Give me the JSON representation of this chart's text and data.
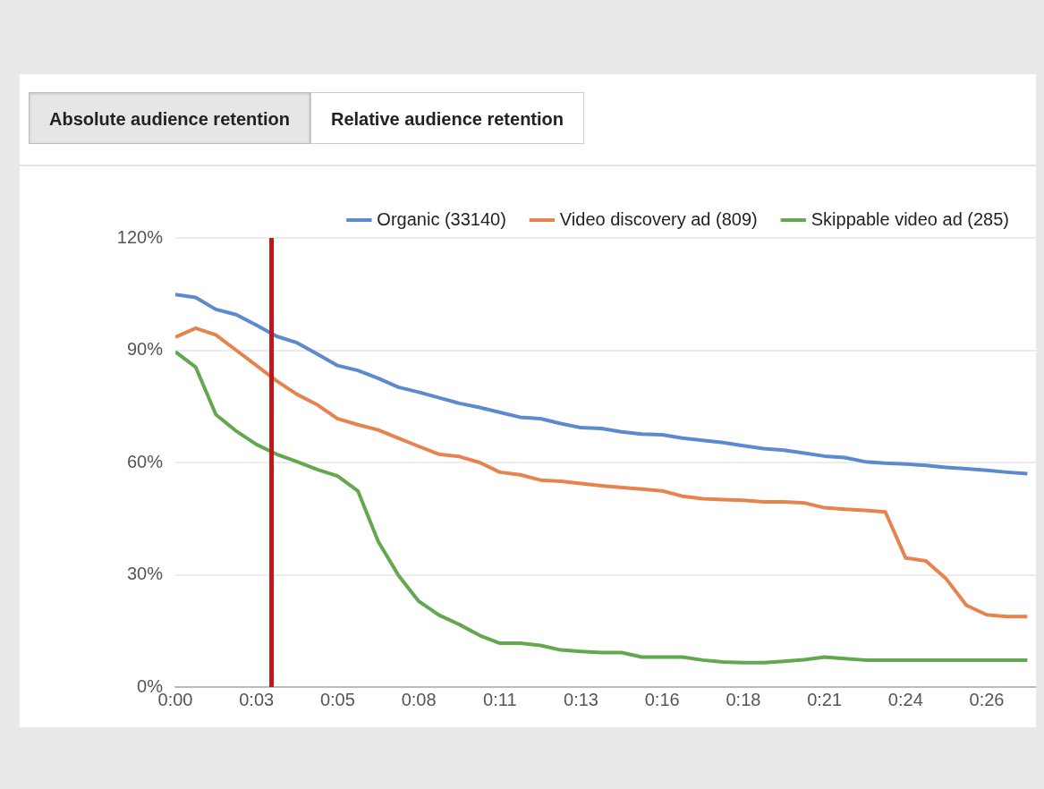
{
  "chart_data": {
    "type": "line",
    "annotations": [
      "Absolute audience retention",
      "Relative audience retention"
    ],
    "x": [
      0,
      0.66,
      1.32,
      1.98,
      2.64,
      3.3,
      3.96,
      4.62,
      5.28,
      5.94,
      6.6,
      7.26,
      7.92,
      8.58,
      9.24,
      9.9,
      10.56,
      11.22,
      11.88,
      12.54,
      13.2,
      13.86,
      14.52,
      15.18,
      15.84,
      16.5,
      17.16,
      17.82,
      18.48,
      19.14,
      19.8,
      20.46,
      21.12,
      21.78,
      22.44,
      23.1,
      23.76,
      24.42,
      25.08,
      25.74,
      26.4,
      27.06,
      27.72
    ],
    "series": [
      {
        "name": "Organic (33140)",
        "color": "#5b8ad0",
        "values": [
          104.9,
          104.1,
          100.9,
          99.5,
          96.7,
          93.7,
          92,
          89,
          85.9,
          84.6,
          82.5,
          80.1,
          78.8,
          77.3,
          75.8,
          74.7,
          73.4,
          72.1,
          71.7,
          70.4,
          69.3,
          69.1,
          68.2,
          67.6,
          67.4,
          66.5,
          65.9,
          65.3,
          64.5,
          63.7,
          63.3,
          62.5,
          61.7,
          61.3,
          60.2,
          59.8,
          59.6,
          59.2,
          58.7,
          58.3,
          57.9,
          57.4,
          57
        ]
      },
      {
        "name": "Video discovery ad (809)",
        "color": "#e6834f",
        "values": [
          93.5,
          95.9,
          94.1,
          90,
          85.9,
          81.8,
          78.2,
          75.4,
          71.7,
          70.1,
          68.7,
          66.5,
          64.3,
          62.2,
          61.6,
          60,
          57.4,
          56.7,
          55.3,
          55,
          54.4,
          53.8,
          53.3,
          52.9,
          52.4,
          51,
          50.3,
          50.1,
          49.9,
          49.5,
          49.5,
          49.2,
          47.9,
          47.5,
          47.2,
          46.8,
          34.5,
          33.7,
          28.9,
          21.8,
          19.3,
          18.8,
          18.8
        ]
      },
      {
        "name": "Skippable video ad (285)",
        "color": "#63a84e",
        "values": [
          89.6,
          85.5,
          72.8,
          68.4,
          64.8,
          62.2,
          60.2,
          58.1,
          56.4,
          52.4,
          38.9,
          29.8,
          22.9,
          19.2,
          16.7,
          13.8,
          11.7,
          11.7,
          11.1,
          9.9,
          9.5,
          9.2,
          9.2,
          8,
          8,
          8,
          7.2,
          6.7,
          6.5,
          6.5,
          6.9,
          7.3,
          8,
          7.6,
          7.2,
          7.2,
          7.2,
          7.2,
          7.2,
          7.2,
          7.2,
          7.2,
          7.2
        ]
      }
    ],
    "xlim": [
      0,
      28
    ],
    "xticks": [
      {
        "value": 0,
        "label": "0:00"
      },
      {
        "value": 2.64,
        "label": "0:03"
      },
      {
        "value": 5.28,
        "label": "0:05"
      },
      {
        "value": 7.92,
        "label": "0:08"
      },
      {
        "value": 10.56,
        "label": "0:11"
      },
      {
        "value": 13.2,
        "label": "0:13"
      },
      {
        "value": 15.84,
        "label": "0:16"
      },
      {
        "value": 18.48,
        "label": "0:18"
      },
      {
        "value": 21.12,
        "label": "0:21"
      },
      {
        "value": 23.76,
        "label": "0:24"
      },
      {
        "value": 26.4,
        "label": "0:26"
      }
    ],
    "ylim": [
      0,
      120
    ],
    "yticks": [
      {
        "value": 0,
        "label": "0%"
      },
      {
        "value": 30,
        "label": "30%"
      },
      {
        "value": 60,
        "label": "60%"
      },
      {
        "value": 90,
        "label": "90%"
      },
      {
        "value": 120,
        "label": "120%"
      }
    ],
    "ref_lines": [
      {
        "axis": "x",
        "value": 3.13,
        "color": "#c0171d"
      }
    ],
    "grid": "y",
    "legend": "top",
    "marker": "none",
    "line_style": "solid"
  }
}
